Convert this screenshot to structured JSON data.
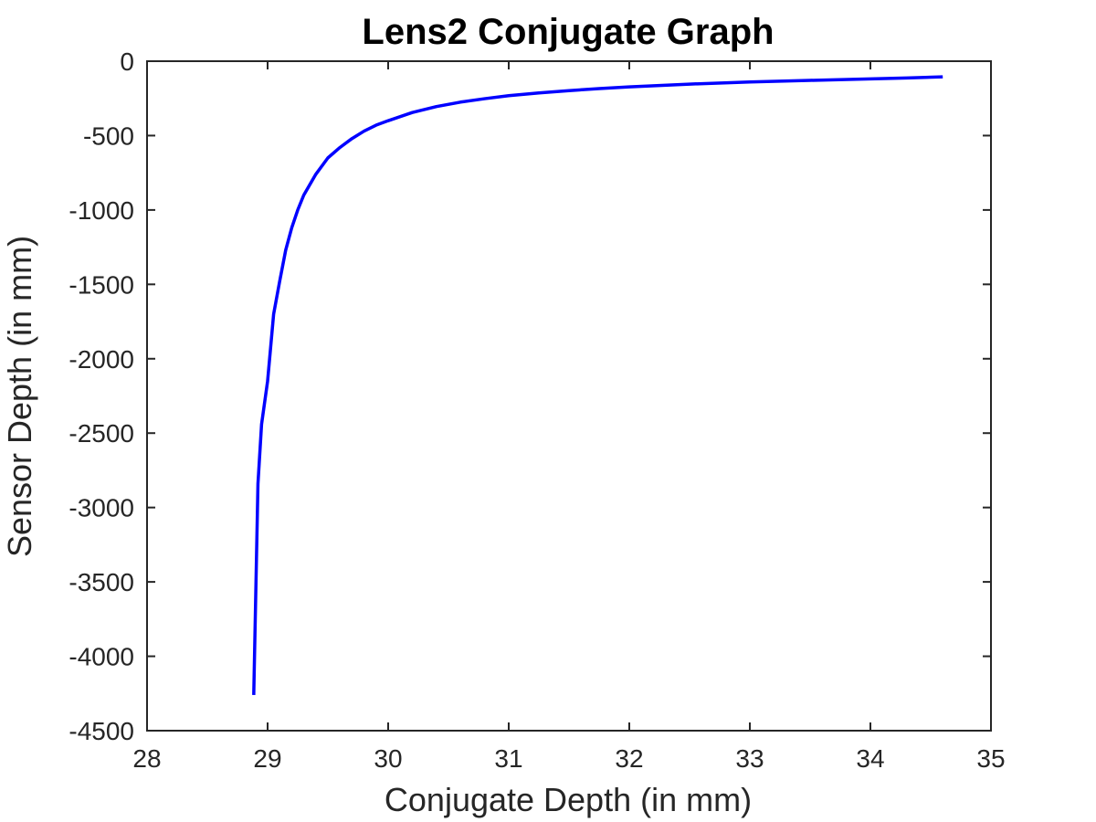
{
  "chart_data": {
    "type": "line",
    "title": "Lens2 Conjugate Graph",
    "xlabel": "Conjugate Depth (in mm)",
    "ylabel": "Sensor Depth (in mm)",
    "xlim": [
      28,
      35
    ],
    "ylim": [
      -4500,
      0
    ],
    "xticks": [
      "28",
      "29",
      "30",
      "31",
      "32",
      "33",
      "34",
      "35"
    ],
    "yticks": [
      "0",
      "-500",
      "-1000",
      "-1500",
      "-2000",
      "-2500",
      "-3000",
      "-3500",
      "-4000",
      "-4500"
    ],
    "grid": false,
    "box": true,
    "series": [
      {
        "color": "#0000ff",
        "x": [
          28.885,
          28.92,
          28.95,
          29.0,
          29.05,
          29.1,
          29.15,
          29.2,
          29.25,
          29.3,
          29.4,
          29.5,
          29.6,
          29.7,
          29.8,
          29.9,
          30.0,
          30.2,
          30.4,
          30.6,
          30.8,
          31.0,
          31.25,
          31.5,
          31.75,
          32.0,
          32.5,
          33.0,
          33.5,
          34.0,
          34.3,
          34.6
        ],
        "y": [
          -4260,
          -2840,
          -2440,
          -2150,
          -1700,
          -1480,
          -1270,
          -1120,
          -1000,
          -900,
          -760,
          -650,
          -580,
          -520,
          -470,
          -430,
          -400,
          -345,
          -305,
          -275,
          -252,
          -232,
          -213,
          -198,
          -184,
          -173,
          -154,
          -140,
          -129,
          -119,
          -113,
          -105
        ]
      }
    ]
  }
}
